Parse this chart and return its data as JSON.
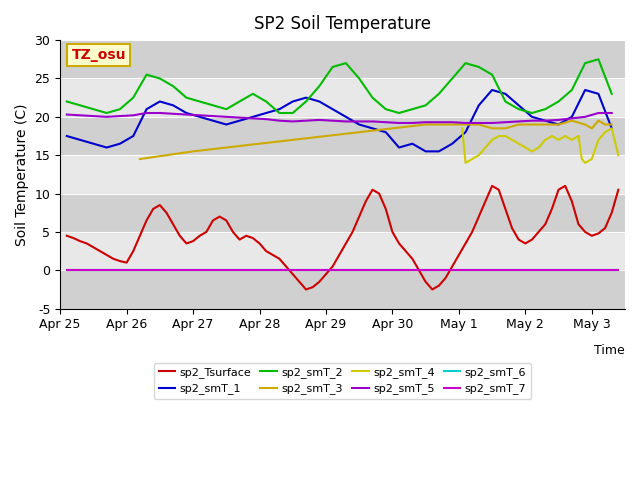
{
  "title": "SP2 Soil Temperature",
  "xlabel": "Time",
  "ylabel": "Soil Temperature (C)",
  "ylim": [
    -5,
    30
  ],
  "xlim_days": [
    0,
    8.5
  ],
  "xtick_labels": [
    "Apr 25",
    "Apr 26",
    "Apr 27",
    "Apr 28",
    "Apr 29",
    "Apr 30",
    "May 1",
    "May 2",
    "May 3"
  ],
  "xtick_positions": [
    0,
    1,
    2,
    3,
    4,
    5,
    6,
    7,
    8
  ],
  "ytick_labels": [
    "-5",
    "0",
    "5",
    "10",
    "15",
    "20",
    "25",
    "30"
  ],
  "ytick_positions": [
    -5,
    0,
    5,
    10,
    15,
    20,
    25,
    30
  ],
  "annotation_text": "TZ_osu",
  "annotation_color": "#cc0000",
  "annotation_bg": "#ffffcc",
  "annotation_border": "#ccaa00",
  "background_color": "#ffffff",
  "plot_bg_color": "#e8e8e8",
  "stripe_color": "#d0d0d0",
  "stripe_ranges": [
    [
      -5,
      0
    ],
    [
      5,
      10
    ],
    [
      15,
      20
    ],
    [
      25,
      30
    ]
  ],
  "legend_entries": [
    {
      "label": "sp2_Tsurface",
      "color": "#cc0000",
      "lw": 1.5
    },
    {
      "label": "sp2_smT_1",
      "color": "#0000cc",
      "lw": 1.5
    },
    {
      "label": "sp2_smT_2",
      "color": "#00bb00",
      "lw": 1.5
    },
    {
      "label": "sp2_smT_3",
      "color": "#ccaa00",
      "lw": 1.5
    },
    {
      "label": "sp2_smT_4",
      "color": "#cccc00",
      "lw": 1.5
    },
    {
      "label": "sp2_smT_5",
      "color": "#9900cc",
      "lw": 1.5
    },
    {
      "label": "sp2_smT_6",
      "color": "#00cccc",
      "lw": 1.5
    },
    {
      "label": "sp2_smT_7",
      "color": "#cc00cc",
      "lw": 1.5
    }
  ],
  "series": {
    "sp2_Tsurface": {
      "color": "#cc0000",
      "x": [
        0.1,
        0.2,
        0.3,
        0.4,
        0.5,
        0.6,
        0.7,
        0.8,
        0.9,
        1.0,
        1.1,
        1.2,
        1.3,
        1.4,
        1.5,
        1.6,
        1.7,
        1.8,
        1.9,
        2.0,
        2.1,
        2.2,
        2.3,
        2.4,
        2.5,
        2.6,
        2.7,
        2.8,
        2.9,
        3.0,
        3.1,
        3.2,
        3.3,
        3.4,
        3.5,
        3.6,
        3.7,
        3.8,
        3.9,
        4.0,
        4.1,
        4.2,
        4.3,
        4.4,
        4.5,
        4.6,
        4.7,
        4.8,
        4.9,
        5.0,
        5.1,
        5.2,
        5.3,
        5.4,
        5.5,
        5.6,
        5.7,
        5.8,
        5.9,
        6.0,
        6.1,
        6.2,
        6.3,
        6.4,
        6.5,
        6.6,
        6.7,
        6.8,
        6.9,
        7.0,
        7.1,
        7.2,
        7.3,
        7.4,
        7.5,
        7.6,
        7.7,
        7.8,
        7.9,
        8.0,
        8.1,
        8.2,
        8.3,
        8.4
      ],
      "y": [
        4.5,
        4.2,
        3.8,
        3.5,
        3.0,
        2.5,
        2.0,
        1.5,
        1.2,
        1.0,
        2.5,
        4.5,
        6.5,
        8.0,
        8.5,
        7.5,
        6.0,
        4.5,
        3.5,
        3.8,
        4.5,
        5.0,
        6.5,
        7.0,
        6.5,
        5.0,
        4.0,
        4.5,
        4.2,
        3.5,
        2.5,
        2.0,
        1.5,
        0.5,
        -0.5,
        -1.5,
        -2.5,
        -2.2,
        -1.5,
        -0.5,
        0.5,
        2.0,
        3.5,
        5.0,
        7.0,
        9.0,
        10.5,
        10.0,
        8.0,
        5.0,
        3.5,
        2.5,
        1.5,
        0.0,
        -1.5,
        -2.5,
        -2.0,
        -1.0,
        0.5,
        2.0,
        3.5,
        5.0,
        7.0,
        9.0,
        11.0,
        10.5,
        8.0,
        5.5,
        4.0,
        3.5,
        4.0,
        5.0,
        6.0,
        8.0,
        10.5,
        11.0,
        9.0,
        6.0,
        5.0,
        4.5,
        4.8,
        5.5,
        7.5,
        10.5
      ]
    },
    "sp2_smT_1": {
      "color": "#0000cc",
      "x": [
        0.1,
        0.3,
        0.5,
        0.7,
        0.9,
        1.1,
        1.3,
        1.5,
        1.7,
        1.9,
        2.1,
        2.3,
        2.5,
        2.7,
        2.9,
        3.1,
        3.3,
        3.5,
        3.7,
        3.9,
        4.1,
        4.3,
        4.5,
        4.7,
        4.9,
        5.1,
        5.3,
        5.5,
        5.7,
        5.9,
        6.1,
        6.3,
        6.5,
        6.7,
        6.9,
        7.1,
        7.3,
        7.5,
        7.7,
        7.9,
        8.1,
        8.3
      ],
      "y": [
        17.5,
        17.0,
        16.5,
        16.0,
        16.5,
        17.5,
        21.0,
        22.0,
        21.5,
        20.5,
        20.0,
        19.5,
        19.0,
        19.5,
        20.0,
        20.5,
        21.0,
        22.0,
        22.5,
        22.0,
        21.0,
        20.0,
        19.0,
        18.5,
        18.0,
        16.0,
        16.5,
        15.5,
        15.5,
        16.5,
        18.0,
        21.5,
        23.5,
        23.0,
        21.5,
        20.0,
        19.5,
        19.0,
        20.0,
        23.5,
        23.0,
        18.5
      ]
    },
    "sp2_smT_2": {
      "color": "#00bb00",
      "x": [
        0.1,
        0.3,
        0.5,
        0.7,
        0.9,
        1.1,
        1.3,
        1.5,
        1.7,
        1.9,
        2.1,
        2.3,
        2.5,
        2.7,
        2.9,
        3.1,
        3.3,
        3.5,
        3.7,
        3.9,
        4.1,
        4.3,
        4.5,
        4.7,
        4.9,
        5.1,
        5.3,
        5.5,
        5.7,
        5.9,
        6.1,
        6.3,
        6.5,
        6.7,
        6.9,
        7.1,
        7.3,
        7.5,
        7.7,
        7.9,
        8.1,
        8.3
      ],
      "y": [
        22.0,
        21.5,
        21.0,
        20.5,
        21.0,
        22.5,
        25.5,
        25.0,
        24.0,
        22.5,
        22.0,
        21.5,
        21.0,
        22.0,
        23.0,
        22.0,
        20.5,
        20.5,
        22.0,
        24.0,
        26.5,
        27.0,
        25.0,
        22.5,
        21.0,
        20.5,
        21.0,
        21.5,
        23.0,
        25.0,
        27.0,
        26.5,
        25.5,
        22.0,
        21.0,
        20.5,
        21.0,
        22.0,
        23.5,
        27.0,
        27.5,
        23.0
      ]
    },
    "sp2_smT_3": {
      "color": "#ccaa00",
      "x": [
        1.2,
        2.0,
        3.0,
        4.0,
        5.0,
        5.5,
        5.8,
        6.1,
        6.3,
        6.5,
        6.7,
        6.9,
        7.1,
        7.3,
        7.5,
        7.7,
        7.9,
        8.0,
        8.1,
        8.2,
        8.3
      ],
      "y": [
        14.5,
        15.5,
        16.5,
        17.5,
        18.5,
        19.0,
        19.0,
        19.0,
        19.0,
        18.5,
        18.5,
        19.0,
        19.0,
        19.0,
        19.0,
        19.5,
        19.0,
        18.5,
        19.5,
        19.0,
        19.0
      ]
    },
    "sp2_smT_4": {
      "color": "#cccc00",
      "x": [
        6.05,
        6.1,
        6.2,
        6.3,
        6.35,
        6.4,
        6.5,
        6.6,
        6.7,
        6.8,
        6.9,
        7.0,
        7.1,
        7.2,
        7.3,
        7.4,
        7.5,
        7.6,
        7.7,
        7.8,
        7.85,
        7.9,
        8.0,
        8.1,
        8.2,
        8.3,
        8.4
      ],
      "y": [
        18.5,
        14.0,
        14.5,
        15.0,
        15.5,
        16.0,
        17.0,
        17.5,
        17.5,
        17.0,
        16.5,
        16.0,
        15.5,
        16.0,
        17.0,
        17.5,
        17.0,
        17.5,
        17.0,
        17.5,
        14.5,
        14.0,
        14.5,
        17.0,
        18.0,
        18.5,
        15.0
      ]
    },
    "sp2_smT_5": {
      "color": "#9900cc",
      "x": [
        0.1,
        0.3,
        0.5,
        0.7,
        0.9,
        1.1,
        1.3,
        1.5,
        1.7,
        1.9,
        2.1,
        2.3,
        2.5,
        2.7,
        2.9,
        3.1,
        3.3,
        3.5,
        3.7,
        3.9,
        4.1,
        4.3,
        4.5,
        4.7,
        4.9,
        5.1,
        5.3,
        5.5,
        5.7,
        5.9,
        6.1,
        6.3,
        6.5,
        6.7,
        6.9,
        7.1,
        7.3,
        7.5,
        7.7,
        7.9,
        8.1,
        8.3
      ],
      "y": [
        20.3,
        20.2,
        20.1,
        20.0,
        20.1,
        20.2,
        20.5,
        20.5,
        20.4,
        20.3,
        20.2,
        20.1,
        20.0,
        19.9,
        19.8,
        19.7,
        19.5,
        19.4,
        19.5,
        19.6,
        19.5,
        19.4,
        19.4,
        19.4,
        19.3,
        19.2,
        19.2,
        19.3,
        19.3,
        19.3,
        19.2,
        19.2,
        19.2,
        19.3,
        19.4,
        19.5,
        19.5,
        19.6,
        19.8,
        20.0,
        20.5,
        20.5
      ]
    },
    "sp2_smT_6": {
      "color": "#00cccc",
      "x": [
        0.1,
        8.4
      ],
      "y": [
        0.0,
        0.0
      ]
    },
    "sp2_smT_7": {
      "color": "#cc00cc",
      "x": [
        0.1,
        8.4
      ],
      "y": [
        0.0,
        0.0
      ]
    }
  }
}
